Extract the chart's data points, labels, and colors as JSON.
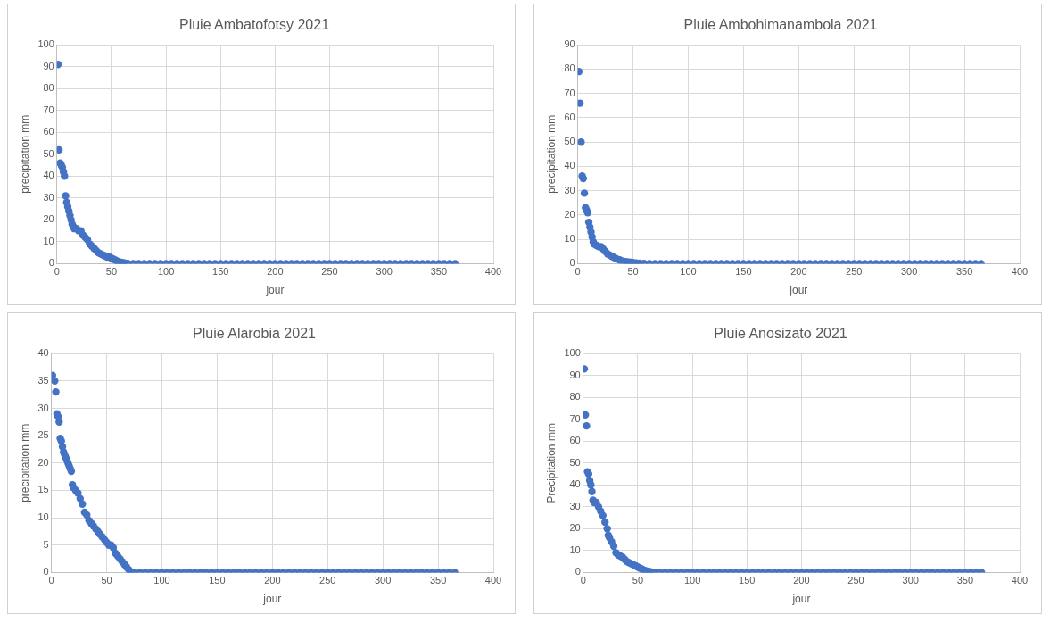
{
  "chart_data": [
    {
      "type": "scatter",
      "title": "Pluie Ambatofotsy 2021",
      "xlabel": "jour",
      "ylabel": "precipitation mm",
      "xlim": [
        0,
        400
      ],
      "xticks": [
        0,
        50,
        100,
        150,
        200,
        250,
        300,
        350,
        400
      ],
      "ylim": [
        0,
        100
      ],
      "yticks": [
        0,
        10,
        20,
        30,
        40,
        50,
        60,
        70,
        80,
        90,
        100
      ],
      "grid": true,
      "marker": "circle",
      "series": [
        {
          "color": "#4472c4",
          "x": [
            1,
            2,
            3,
            4,
            5,
            6,
            7,
            8,
            9,
            10,
            11,
            12,
            13,
            14,
            15,
            16,
            18,
            20,
            22,
            24,
            26,
            28,
            30,
            32,
            34,
            36,
            38,
            40,
            42,
            44,
            46,
            48,
            50,
            52,
            54,
            56,
            58,
            60,
            62,
            65,
            70,
            75,
            80,
            85,
            90,
            95,
            100,
            105,
            110,
            115,
            120,
            125,
            130,
            135,
            140,
            145,
            150,
            155,
            160,
            165,
            170,
            175,
            180,
            185,
            190,
            195,
            200,
            205,
            210,
            215,
            220,
            225,
            230,
            235,
            240,
            245,
            250,
            255,
            260,
            265,
            270,
            275,
            280,
            285,
            290,
            295,
            300,
            305,
            310,
            315,
            320,
            325,
            330,
            335,
            340,
            345,
            350,
            355,
            360,
            365
          ],
          "values": [
            91,
            52,
            46,
            45,
            44,
            42,
            40,
            31,
            28,
            26,
            24,
            22,
            20,
            18,
            17,
            16,
            16,
            15,
            15,
            13,
            12,
            11,
            9,
            8,
            7,
            6,
            5,
            4.5,
            4,
            3.5,
            3,
            3,
            2.5,
            2,
            1.5,
            1,
            0.7,
            0.5,
            0.3,
            0.1,
            0,
            0,
            0,
            0,
            0,
            0,
            0,
            0,
            0,
            0,
            0,
            0,
            0,
            0,
            0,
            0,
            0,
            0,
            0,
            0,
            0,
            0,
            0,
            0,
            0,
            0,
            0,
            0,
            0,
            0,
            0,
            0,
            0,
            0,
            0,
            0,
            0,
            0,
            0,
            0,
            0,
            0,
            0,
            0,
            0,
            0,
            0,
            0,
            0,
            0,
            0,
            0,
            0,
            0,
            0,
            0,
            0,
            0,
            0,
            0
          ]
        }
      ]
    },
    {
      "type": "scatter",
      "title": "Pluie Ambohimanambola 2021",
      "xlabel": "jour",
      "ylabel": "precipitation mm",
      "xlim": [
        0,
        400
      ],
      "xticks": [
        0,
        50,
        100,
        150,
        200,
        250,
        300,
        350,
        400
      ],
      "ylim": [
        0,
        90
      ],
      "yticks": [
        0,
        10,
        20,
        30,
        40,
        50,
        60,
        70,
        80,
        90
      ],
      "grid": true,
      "marker": "circle",
      "series": [
        {
          "color": "#4472c4",
          "x": [
            1,
            2,
            3,
            4,
            5,
            6,
            7,
            8,
            9,
            10,
            11,
            12,
            13,
            14,
            15,
            17,
            19,
            21,
            23,
            25,
            27,
            29,
            31,
            33,
            35,
            38,
            41,
            44,
            47,
            50,
            53,
            56,
            60,
            65,
            70,
            75,
            80,
            85,
            90,
            95,
            100,
            105,
            110,
            115,
            120,
            125,
            130,
            135,
            140,
            145,
            150,
            155,
            160,
            165,
            170,
            175,
            180,
            185,
            190,
            195,
            200,
            205,
            210,
            215,
            220,
            225,
            230,
            235,
            240,
            245,
            250,
            255,
            260,
            265,
            270,
            275,
            280,
            285,
            290,
            295,
            300,
            305,
            310,
            315,
            320,
            325,
            330,
            335,
            340,
            345,
            350,
            355,
            360,
            365
          ],
          "values": [
            79,
            66,
            50,
            36,
            35,
            29,
            23,
            22,
            21,
            17,
            15,
            13,
            11,
            9,
            8,
            7.5,
            7,
            7,
            6,
            5,
            4,
            3.5,
            3,
            2.5,
            2,
            1.5,
            1,
            0.8,
            0.6,
            0.4,
            0.3,
            0.2,
            0.1,
            0,
            0,
            0,
            0,
            0,
            0,
            0,
            0,
            0,
            0,
            0,
            0,
            0,
            0,
            0,
            0,
            0,
            0,
            0,
            0,
            0,
            0,
            0,
            0,
            0,
            0,
            0,
            0,
            0,
            0,
            0,
            0,
            0,
            0,
            0,
            0,
            0,
            0,
            0,
            0,
            0,
            0,
            0,
            0,
            0,
            0,
            0,
            0,
            0,
            0,
            0,
            0,
            0,
            0,
            0,
            0,
            0,
            0,
            0,
            0,
            0
          ]
        }
      ]
    },
    {
      "type": "scatter",
      "title": "Pluie Alarobia 2021",
      "xlabel": "jour",
      "ylabel": "precipitation mm",
      "xlim": [
        0,
        400
      ],
      "xticks": [
        0,
        50,
        100,
        150,
        200,
        250,
        300,
        350,
        400
      ],
      "ylim": [
        0,
        40
      ],
      "yticks": [
        0,
        5,
        10,
        15,
        20,
        25,
        30,
        35,
        40
      ],
      "grid": true,
      "marker": "circle",
      "series": [
        {
          "color": "#4472c4",
          "x": [
            1,
            3,
            4,
            5,
            6,
            7,
            8,
            9,
            10,
            11,
            12,
            13,
            14,
            15,
            16,
            17,
            18,
            19,
            20,
            22,
            24,
            26,
            28,
            30,
            32,
            34,
            36,
            38,
            40,
            42,
            44,
            46,
            48,
            50,
            52,
            54,
            56,
            58,
            60,
            62,
            64,
            66,
            68,
            70,
            72,
            75,
            80,
            85,
            90,
            95,
            100,
            105,
            110,
            115,
            120,
            125,
            130,
            135,
            140,
            145,
            150,
            155,
            160,
            165,
            170,
            175,
            180,
            185,
            190,
            195,
            200,
            205,
            210,
            215,
            220,
            225,
            230,
            235,
            240,
            245,
            250,
            255,
            260,
            265,
            270,
            275,
            280,
            285,
            290,
            295,
            300,
            305,
            310,
            315,
            320,
            325,
            330,
            335,
            340,
            345,
            350,
            355,
            360,
            365
          ],
          "values": [
            36,
            35,
            33,
            29,
            28.5,
            27.5,
            24.5,
            24,
            23,
            22,
            21.5,
            21,
            20.5,
            20,
            19.5,
            19,
            18.5,
            16,
            15.5,
            15,
            14.5,
            13.5,
            12.5,
            11,
            10.5,
            9.5,
            9,
            8.5,
            8,
            7.5,
            7,
            6.5,
            6,
            5.5,
            5,
            5,
            4.5,
            3.5,
            3,
            2.5,
            2,
            1.5,
            1,
            0.5,
            0,
            0,
            0,
            0,
            0,
            0,
            0,
            0,
            0,
            0,
            0,
            0,
            0,
            0,
            0,
            0,
            0,
            0,
            0,
            0,
            0,
            0,
            0,
            0,
            0,
            0,
            0,
            0,
            0,
            0,
            0,
            0,
            0,
            0,
            0,
            0,
            0,
            0,
            0,
            0,
            0,
            0,
            0,
            0,
            0,
            0,
            0,
            0,
            0,
            0,
            0,
            0,
            0,
            0,
            0,
            0,
            0,
            0,
            0,
            0
          ]
        }
      ]
    },
    {
      "type": "scatter",
      "title": "Pluie Anosizato 2021",
      "xlabel": "jour",
      "ylabel": "Precipitation mm",
      "xlim": [
        0,
        400
      ],
      "xticks": [
        0,
        50,
        100,
        150,
        200,
        250,
        300,
        350,
        400
      ],
      "ylim": [
        0,
        100
      ],
      "yticks": [
        0,
        10,
        20,
        30,
        40,
        50,
        60,
        70,
        80,
        90,
        100
      ],
      "grid": true,
      "marker": "circle",
      "series": [
        {
          "color": "#4472c4",
          "x": [
            1,
            2,
            3,
            4,
            5,
            6,
            7,
            8,
            9,
            10,
            12,
            14,
            16,
            18,
            20,
            22,
            23,
            24,
            26,
            28,
            30,
            32,
            34,
            36,
            38,
            40,
            42,
            44,
            46,
            48,
            50,
            52,
            54,
            56,
            58,
            60,
            62,
            65,
            70,
            75,
            80,
            85,
            90,
            95,
            100,
            105,
            110,
            115,
            120,
            125,
            130,
            135,
            140,
            145,
            150,
            155,
            160,
            165,
            170,
            175,
            180,
            185,
            190,
            195,
            200,
            205,
            210,
            215,
            220,
            225,
            230,
            235,
            240,
            245,
            250,
            255,
            260,
            265,
            270,
            275,
            280,
            285,
            290,
            295,
            300,
            305,
            310,
            315,
            320,
            325,
            330,
            335,
            340,
            345,
            350,
            355,
            360,
            365
          ],
          "values": [
            93,
            72,
            67,
            46,
            45,
            42,
            40,
            37,
            33,
            32,
            32,
            30,
            28,
            26,
            23,
            20,
            17,
            16,
            14,
            12,
            9,
            8,
            7.5,
            7,
            6,
            5,
            4.5,
            4,
            3.5,
            3,
            2.5,
            2,
            1.5,
            1,
            0.7,
            0.5,
            0.3,
            0.1,
            0,
            0,
            0,
            0,
            0,
            0,
            0,
            0,
            0,
            0,
            0,
            0,
            0,
            0,
            0,
            0,
            0,
            0,
            0,
            0,
            0,
            0,
            0,
            0,
            0,
            0,
            0,
            0,
            0,
            0,
            0,
            0,
            0,
            0,
            0,
            0,
            0,
            0,
            0,
            0,
            0,
            0,
            0,
            0,
            0,
            0,
            0,
            0,
            0,
            0,
            0,
            0,
            0,
            0,
            0,
            0,
            0,
            0,
            0,
            0
          ]
        }
      ]
    }
  ]
}
